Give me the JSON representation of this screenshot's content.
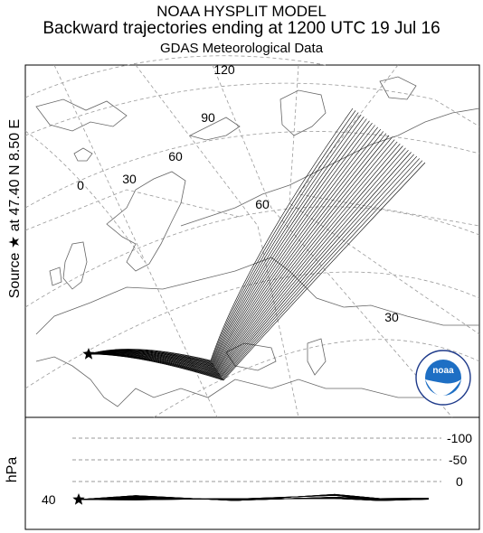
{
  "header": {
    "line1": "NOAA HYSPLIT MODEL",
    "line2": "Backward trajectories ending at 1200 UTC 19 Jul 16",
    "line3": "GDAS Meteorological Data"
  },
  "side_label": "Source ★ at   47.40 N    8.50 E",
  "grid_labels": {
    "lon_120": "120",
    "lon_90": "90",
    "lon_60": "60",
    "lon_30": "30",
    "lon_0": "0",
    "lat_60": "60",
    "lat_30": "30"
  },
  "height_panel": {
    "unit_label": "hPa",
    "ticks": [
      "-100",
      "-50",
      "0"
    ],
    "source_level": "40"
  },
  "source": {
    "lat": 47.4,
    "lon": 8.5,
    "marker": "★"
  },
  "trajectory": {
    "count": 27,
    "color": "#000000"
  },
  "logo": {
    "text": "noaa",
    "accent_color": "#1e6fc4"
  }
}
